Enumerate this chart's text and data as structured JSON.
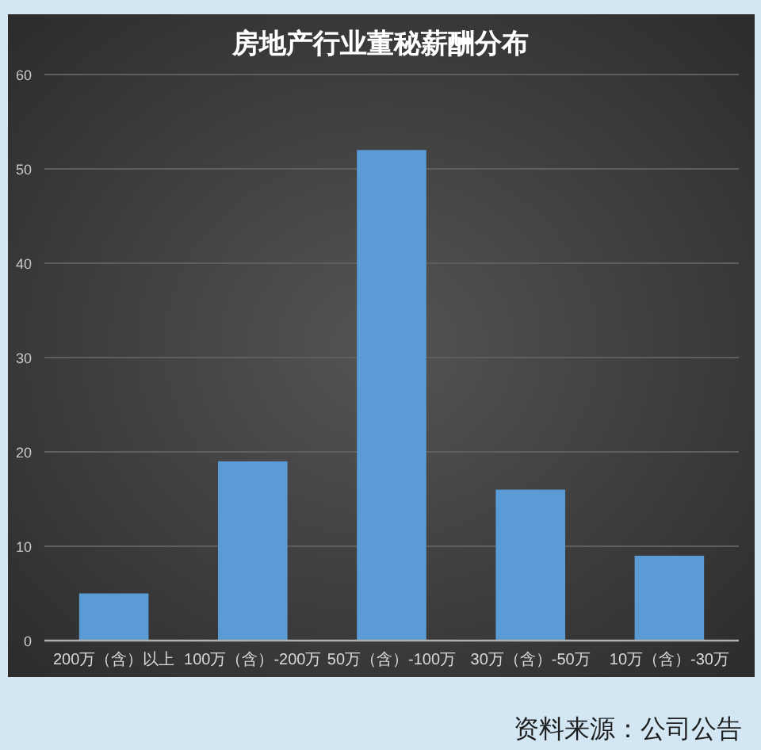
{
  "chart_data": {
    "type": "bar",
    "title": "房地产行业董秘薪酬分布",
    "categories": [
      "200万（含）以上",
      "100万（含）-200万",
      "50万（含）-100万",
      "30万（含）-50万",
      "10万（含）-30万"
    ],
    "values": [
      5,
      19,
      52,
      16,
      9
    ],
    "color": "#5b9bd5",
    "ylim": [
      0,
      60
    ],
    "yticks": [
      0,
      10,
      20,
      30,
      40,
      50,
      60
    ],
    "grid": "y",
    "annotations": [
      "资料来源：公司公告"
    ]
  }
}
